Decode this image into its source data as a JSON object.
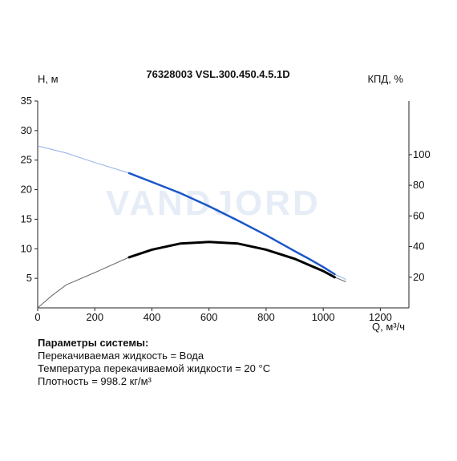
{
  "chart_data": {
    "type": "line",
    "title": "76328003 VSL.300.450.4.5.1D",
    "ylabel": "H, м",
    "y2label": "КПД, %",
    "xlabel": "Q, м³/ч",
    "xlim": [
      0,
      1300
    ],
    "ylim": [
      0,
      35
    ],
    "y2lim": [
      0,
      135
    ],
    "x_ticks": [
      0,
      200,
      400,
      600,
      800,
      1000,
      1200
    ],
    "y_ticks": [
      5,
      10,
      15,
      20,
      25,
      30,
      35
    ],
    "y2_ticks": [
      20,
      40,
      60,
      80,
      100
    ],
    "grid": false,
    "watermark": "VANDJORD",
    "series": [
      {
        "key": "head",
        "axis": "left",
        "color": "#1a56c8",
        "points": [
          [
            0,
            27.4
          ],
          [
            100,
            26.2
          ],
          [
            200,
            24.6
          ],
          [
            320,
            22.8
          ],
          [
            400,
            21.3
          ],
          [
            500,
            19.4
          ],
          [
            600,
            17.2
          ],
          [
            700,
            14.8
          ],
          [
            800,
            12.3
          ],
          [
            900,
            9.6
          ],
          [
            950,
            8.3
          ],
          [
            1000,
            6.9
          ],
          [
            1040,
            5.7
          ],
          [
            1080,
            4.8
          ]
        ],
        "operating_range": [
          320,
          1040
        ]
      },
      {
        "key": "efficiency",
        "axis": "right",
        "color": "#000000",
        "points": [
          [
            0,
            0
          ],
          [
            50,
            8
          ],
          [
            100,
            15
          ],
          [
            200,
            23
          ],
          [
            320,
            33
          ],
          [
            400,
            38
          ],
          [
            500,
            42
          ],
          [
            600,
            43
          ],
          [
            700,
            42
          ],
          [
            800,
            38
          ],
          [
            900,
            32
          ],
          [
            1000,
            24
          ],
          [
            1040,
            20
          ],
          [
            1080,
            17
          ]
        ],
        "operating_range": [
          320,
          1040
        ]
      }
    ]
  },
  "system_params": {
    "header": "Параметры системы:",
    "lines": [
      "Перекачиваемая жидкость = Вода",
      "Температура перекачиваемой жидкости = 20 °C",
      "Плотность = 998.2 кг/м³"
    ]
  }
}
